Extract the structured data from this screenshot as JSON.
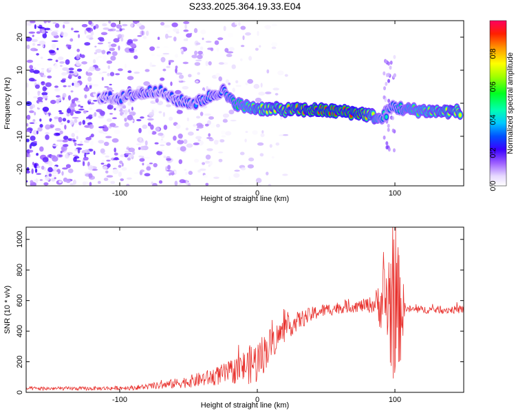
{
  "title": "S233.2025.364.19.33.E04",
  "chart_data": [
    {
      "type": "heatmap",
      "name": "spectrogram",
      "xlabel": "Height of straight line (km)",
      "ylabel": "Frequency (Hz)",
      "xlim": [
        -168,
        150
      ],
      "ylim": [
        -25,
        25
      ],
      "xticks": [
        -100,
        0,
        100
      ],
      "yticks": [
        -20,
        -10,
        0,
        10,
        20
      ],
      "colorbar": {
        "label": "Normalized spectral amplitude",
        "range": [
          0,
          1
        ],
        "ticks": [
          0.0,
          0.2,
          0.4,
          0.6,
          0.8
        ],
        "tick_labels": [
          "0.0",
          "0.2",
          "0.4",
          "0.6",
          "0.8"
        ]
      },
      "ridge": {
        "description_points_x": [
          -115,
          -100,
          -85,
          -72,
          -60,
          -45,
          -35,
          -25,
          -20,
          -10,
          0,
          20,
          40,
          60,
          75,
          85,
          90,
          98,
          110,
          130,
          148
        ],
        "frequency_hz": [
          2,
          1.5,
          3,
          4,
          1,
          0,
          2,
          4,
          1,
          -1,
          -1.5,
          -2,
          -2,
          -2.5,
          -3,
          -4,
          -5,
          -1,
          -2,
          -2.5,
          -2.5
        ],
        "amplitude": [
          0.25,
          0.3,
          0.35,
          0.3,
          0.3,
          0.35,
          0.4,
          0.35,
          0.5,
          0.6,
          0.7,
          0.8,
          0.9,
          0.95,
          0.9,
          0.7,
          0.5,
          0.4,
          0.6,
          0.7,
          0.75
        ]
      }
    },
    {
      "type": "line",
      "name": "snr",
      "xlabel": "Height of straight line (km)",
      "ylabel": "SNR (10 * v/v)",
      "xlim": [
        -168,
        150
      ],
      "ylim": [
        0,
        1080
      ],
      "xticks": [
        -100,
        0,
        100
      ],
      "yticks": [
        0,
        200,
        400,
        600,
        800,
        1000
      ],
      "color": "#e8302c",
      "series": [
        {
          "name": "SNR",
          "envelope_x": [
            -168,
            -120,
            -90,
            -70,
            -50,
            -35,
            -20,
            -10,
            0,
            10,
            20,
            30,
            45,
            60,
            75,
            85,
            92,
            96,
            100,
            104,
            108,
            115,
            130,
            150
          ],
          "envelope_mean": [
            25,
            25,
            30,
            45,
            70,
            95,
            130,
            165,
            200,
            320,
            410,
            470,
            530,
            555,
            565,
            575,
            600,
            590,
            550,
            540,
            545,
            540,
            540,
            540
          ],
          "envelope_amplitude": [
            12,
            12,
            15,
            25,
            40,
            55,
            75,
            110,
            150,
            110,
            80,
            60,
            45,
            40,
            40,
            60,
            250,
            450,
            500,
            350,
            25,
            25,
            25,
            25
          ]
        }
      ]
    }
  ]
}
